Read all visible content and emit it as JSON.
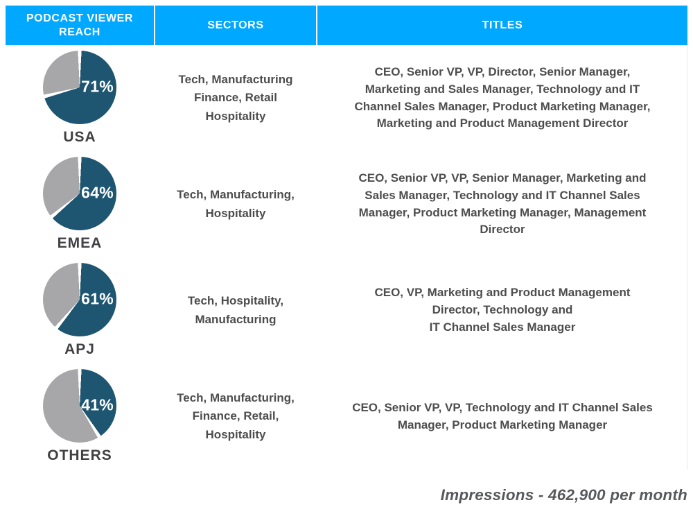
{
  "colors": {
    "header_bg": "#00A8FF",
    "header_text": "#ffffff",
    "pie_primary": "#1E5570",
    "pie_secondary": "#A7A7A9",
    "row_alt_bg": "#ECECEC",
    "body_text": "#4D4D4D",
    "region_text": "#414042",
    "footer_text": "#58595B"
  },
  "header": {
    "columns": [
      "PODCAST VIEWER\nREACH",
      "SECTORS",
      "TITLES"
    ]
  },
  "rows": [
    {
      "region": "USA",
      "reach_pct": 71,
      "reach_label": "71%",
      "sectors": "Tech, Manufacturing\nFinance, Retail\nHospitality",
      "titles": "CEO, Senior VP, VP, Director, Senior Manager,\nMarketing and Sales Manager, Technology and IT\nChannel Sales Manager, Product Marketing Manager,\nMarketing and Product Management Director"
    },
    {
      "region": "EMEA",
      "reach_pct": 64,
      "reach_label": "64%",
      "sectors": "Tech, Manufacturing,\nHospitality",
      "titles": "CEO, Senior VP, VP, Senior Manager, Marketing and\nSales Manager, Technology and IT Channel Sales\nManager, Product Marketing Manager, Management\nDirector"
    },
    {
      "region": "APJ",
      "reach_pct": 61,
      "reach_label": "61%",
      "sectors": "Tech, Hospitality,\nManufacturing",
      "titles": "CEO, VP, Marketing and Product Management\nDirector, Technology and\nIT Channel Sales Manager"
    },
    {
      "region": "OTHERS",
      "reach_pct": 41,
      "reach_label": "41%",
      "sectors": "Tech, Manufacturing,\nFinance, Retail,\nHospitality",
      "titles": "CEO, Senior VP, VP, Technology and IT Channel Sales\nManager, Product Marketing Manager"
    }
  ],
  "footer": {
    "note": "Impressions - 462,900 per month"
  },
  "chart_data": [
    {
      "type": "pie",
      "title": "USA podcast viewer reach",
      "categories": [
        "Reached",
        "Not reached"
      ],
      "values": [
        71,
        29
      ],
      "colors": [
        "#1E5570",
        "#A7A7A9"
      ],
      "data_label": "71%",
      "legend_position": "none"
    },
    {
      "type": "pie",
      "title": "EMEA podcast viewer reach",
      "categories": [
        "Reached",
        "Not reached"
      ],
      "values": [
        64,
        36
      ],
      "colors": [
        "#1E5570",
        "#A7A7A9"
      ],
      "data_label": "64%",
      "legend_position": "none"
    },
    {
      "type": "pie",
      "title": "APJ podcast viewer reach",
      "categories": [
        "Reached",
        "Not reached"
      ],
      "values": [
        61,
        39
      ],
      "colors": [
        "#1E5570",
        "#A7A7A9"
      ],
      "data_label": "61%",
      "legend_position": "none"
    },
    {
      "type": "pie",
      "title": "OTHERS podcast viewer reach",
      "categories": [
        "Reached",
        "Not reached"
      ],
      "values": [
        41,
        59
      ],
      "colors": [
        "#1E5570",
        "#A7A7A9"
      ],
      "data_label": "41%",
      "legend_position": "none"
    },
    {
      "type": "table",
      "title": "Podcast Viewer Reach",
      "columns": [
        "PODCAST VIEWER REACH",
        "SECTORS",
        "TITLES"
      ],
      "rows": [
        [
          "USA 71%",
          "Tech, Manufacturing Finance, Retail Hospitality",
          "CEO, Senior VP, VP, Director, Senior Manager, Marketing and Sales Manager, Technology and IT Channel Sales Manager, Product Marketing Manager, Marketing and Product Management Director"
        ],
        [
          "EMEA 64%",
          "Tech, Manufacturing, Hospitality",
          "CEO, Senior VP, VP, Senior Manager, Marketing and Sales Manager, Technology and IT Channel Sales Manager, Product Marketing Manager, Management Director"
        ],
        [
          "APJ 61%",
          "Tech, Hospitality, Manufacturing",
          "CEO, VP, Marketing and Product Management Director, Technology and IT Channel Sales Manager"
        ],
        [
          "OTHERS 41%",
          "Tech, Manufacturing, Finance, Retail, Hospitality",
          "CEO, Senior VP, VP, Technology and IT Channel Sales Manager, Product Marketing Manager"
        ]
      ],
      "annotation": "Impressions - 462,900 per month"
    }
  ]
}
